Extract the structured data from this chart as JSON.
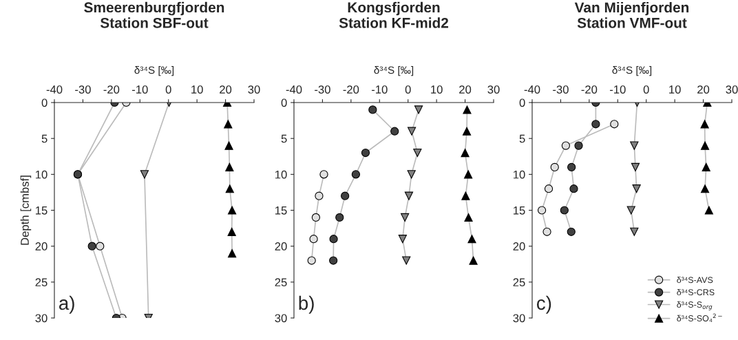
{
  "chart_data": [
    {
      "type": "line",
      "title": "Smeerenburgfjorden\nStation SBF-out",
      "xlabel": "δ³⁴S [‰]",
      "ylabel": "Depth [cmbsf]",
      "xlim": [
        -40,
        30
      ],
      "xticks": [
        -40,
        -30,
        -20,
        -10,
        0,
        10,
        20,
        30
      ],
      "ylim": [
        30,
        0
      ],
      "yticks": [
        0,
        5,
        10,
        15,
        20,
        25,
        30
      ],
      "grid": false,
      "annotations": [
        "a)"
      ],
      "series": [
        {
          "color": "#e0e0e0",
          "marker": "circle",
          "x": [
            -14.8,
            -31.8,
            -24.0,
            -16.2
          ],
          "values": [
            0,
            10,
            20,
            30
          ]
        },
        {
          "color": "#404040",
          "marker": "circle",
          "x": [
            -18.9,
            -31.8,
            -26.8,
            -18.3
          ],
          "values": [
            0,
            10,
            20,
            30
          ]
        },
        {
          "color": "#808080",
          "marker": "triangle_down",
          "x": [
            0.2,
            -8.4,
            -7.0
          ],
          "values": [
            0,
            10,
            30
          ]
        },
        {
          "color": "#000000",
          "marker": "triangle",
          "x": [
            20.6,
            20.9,
            21.2,
            21.4,
            21.5,
            22.3,
            22.2,
            22.3
          ],
          "values": [
            0,
            3,
            6,
            9,
            12,
            15,
            18,
            21
          ]
        }
      ]
    },
    {
      "type": "line",
      "title": "Kongsfjorden\nStation KF-mid2",
      "xlabel": "δ³⁴S [‰]",
      "xlim": [
        -40,
        30
      ],
      "xticks": [
        -40,
        -30,
        -20,
        -10,
        0,
        10,
        20,
        30
      ],
      "ylim": [
        30,
        0
      ],
      "yticks": [
        0,
        5,
        10,
        15,
        20,
        25,
        30
      ],
      "grid": false,
      "annotations": [
        "b)"
      ],
      "series": [
        {
          "color": "#e0e0e0",
          "marker": "circle",
          "x": [
            -29.5,
            -31.2,
            -32.3,
            -33.1,
            -33.8
          ],
          "values": [
            10,
            13,
            16,
            19,
            22
          ]
        },
        {
          "color": "#404040",
          "marker": "circle",
          "x": [
            -12.4,
            -4.7,
            -14.9,
            -18.3,
            -22.1,
            -24.0,
            -26.1,
            -26.2
          ],
          "values": [
            1,
            4,
            7,
            10,
            13,
            16,
            19,
            22
          ]
        },
        {
          "color": "#808080",
          "marker": "triangle_down",
          "x": [
            3.7,
            1.3,
            3.3,
            1.2,
            0.3,
            -1.1,
            -1.9,
            -0.6
          ],
          "values": [
            1,
            4,
            7,
            10,
            13,
            16,
            19,
            22
          ]
        },
        {
          "color": "#000000",
          "marker": "triangle",
          "x": [
            20.7,
            20.6,
            20.0,
            21.1,
            20.2,
            21.2,
            22.4,
            22.9
          ],
          "values": [
            1,
            4,
            7,
            10,
            13,
            16,
            19,
            22
          ]
        }
      ]
    },
    {
      "type": "line",
      "title": "Van Mijenfjorden\nStation VMF-out",
      "xlabel": "δ³⁴S [‰]",
      "xlim": [
        -40,
        30
      ],
      "xticks": [
        -40,
        -30,
        -20,
        -10,
        0,
        10,
        20,
        30
      ],
      "ylim": [
        30,
        0
      ],
      "yticks": [
        0,
        5,
        10,
        15,
        20,
        25,
        30
      ],
      "grid": false,
      "annotations": [
        "c)"
      ],
      "legend": "bottom right",
      "series": [
        {
          "name": "δ³⁴S-AVS",
          "color": "#e0e0e0",
          "marker": "circle",
          "x": [
            -11.2,
            -28.2,
            -32.1,
            -34.2,
            -36.6,
            -34.8
          ],
          "values": [
            3,
            6,
            9,
            12,
            15,
            18
          ]
        },
        {
          "name": "δ³⁴S-CRS",
          "color": "#404040",
          "marker": "circle",
          "x": [
            -17.7,
            -17.7,
            -23.7,
            -26.2,
            -25.4,
            -28.7,
            -26.3
          ],
          "values": [
            0,
            3,
            6,
            9,
            12,
            15,
            18
          ]
        },
        {
          "name": "δ³⁴S-S$_{org}$",
          "color": "#808080",
          "marker": "triangle_down",
          "x": [
            -3.2,
            -4.2,
            -3.8,
            -3.4,
            -5.3,
            -4.2
          ],
          "values": [
            0,
            6,
            9,
            12,
            15,
            18
          ]
        },
        {
          "name": "δ³⁴S-SO₄$^{2−}$",
          "color": "#000000",
          "marker": "triangle",
          "x": [
            21.4,
            20.5,
            20.6,
            21.0,
            20.6,
            22.0
          ],
          "values": [
            0,
            3,
            6,
            9,
            12,
            15
          ]
        }
      ]
    }
  ]
}
